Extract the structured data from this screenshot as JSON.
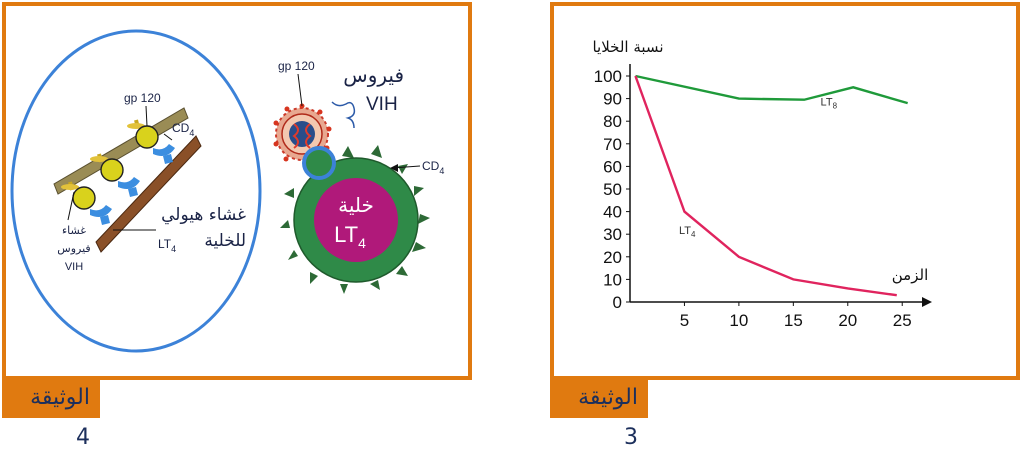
{
  "doc4": {
    "tab_label": "الوثيقة 4",
    "left_panel": {
      "gp120_label": "gp 120",
      "cd4_label": "CD",
      "cd4_sub": "4",
      "virus_membrane_label_1": "غشاء",
      "virus_membrane_label_2": "فيروس",
      "virus_membrane_label_3": "VIH",
      "cell_membrane_label_1": "غشاء هيولي",
      "cell_membrane_label_2": "للخلية",
      "cell_membrane_label_lt": "LT",
      "cell_membrane_label_sub": "4"
    },
    "right_panel": {
      "gp120_label": "gp 120",
      "virus_label_ar": "فيروس",
      "virus_label_en": "VIH",
      "cd4_label": "CD",
      "cd4_sub": "4",
      "cell_label_ar": "خلية",
      "cell_label_lt": "LT",
      "cell_label_sub": "4"
    }
  },
  "doc3": {
    "tab_label": "الوثيقة 3"
  },
  "chart_data": {
    "type": "line",
    "ylabel": "نسبة الخلايا",
    "xlabel": "الزمن",
    "x_ticks": [
      5,
      10,
      15,
      20,
      25
    ],
    "y_ticks": [
      0,
      10,
      20,
      30,
      40,
      50,
      60,
      70,
      80,
      90,
      100
    ],
    "xlim": [
      0,
      27
    ],
    "ylim": [
      0,
      100
    ],
    "grid": false,
    "series": [
      {
        "name": "LT8",
        "label_main": "LT",
        "label_sub": "8",
        "color": "#1f9a3a",
        "x": [
          0.5,
          10,
          16,
          20.5,
          25.5
        ],
        "y": [
          100,
          90,
          89.5,
          95,
          88
        ]
      },
      {
        "name": "LT4",
        "label_main": "LT",
        "label_sub": "4",
        "color": "#e0245e",
        "x": [
          0.5,
          5,
          10,
          15,
          20,
          24.5
        ],
        "y": [
          100,
          40,
          20,
          10,
          6,
          3
        ]
      }
    ]
  }
}
